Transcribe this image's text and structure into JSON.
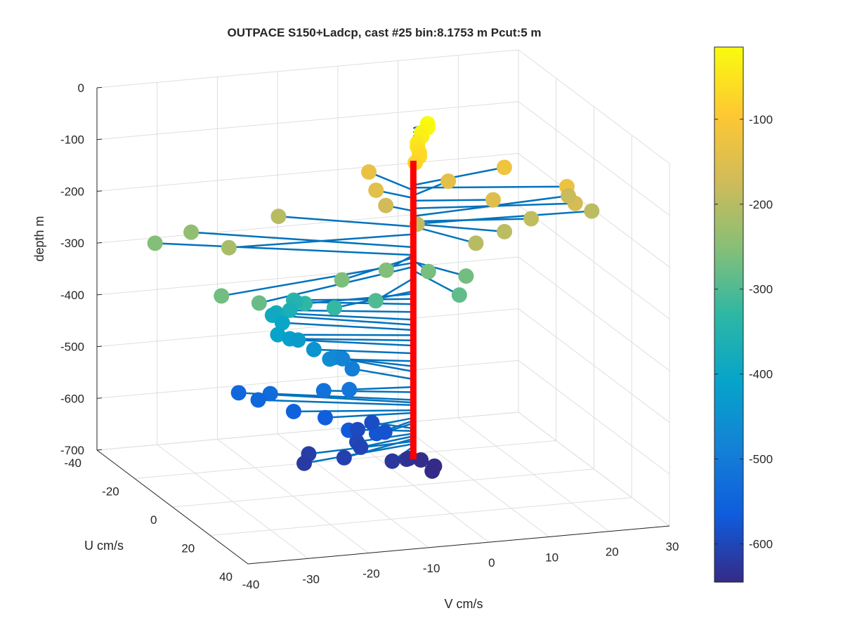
{
  "chart_data": {
    "type": "scatter3d",
    "title": "OUTPACE S150+Ladcp, cast #25 bin:8.1753 m  Pcut:5 m",
    "zlabel": "depth m",
    "ulabel": "U cm/s",
    "vlabel": "V cm/s",
    "zlim": [
      -700,
      0
    ],
    "ulim": [
      -40,
      40
    ],
    "vlim": [
      -40,
      30
    ],
    "z_ticks": [
      "0",
      "-100",
      "-200",
      "-300",
      "-400",
      "-500",
      "-600",
      "-700"
    ],
    "u_ticks": [
      "-40",
      "-20",
      "0",
      "20",
      "40"
    ],
    "v_ticks": [
      "-40",
      "-30",
      "-20",
      "-10",
      "0",
      "10",
      "20",
      "30"
    ],
    "colorbar": {
      "min": -645,
      "max": -15,
      "ticks": [
        "-100",
        "-200",
        "-300",
        "-400",
        "-500",
        "-600"
      ],
      "colormap": "parula"
    },
    "grid": true,
    "reference_line": {
      "color": "#ff0000",
      "z_from": -5,
      "z_to": -650,
      "u": 0,
      "v": 0
    },
    "stick_color": "#0072bd",
    "points": [
      {
        "z": -10,
        "u": -2,
        "v": 3
      },
      {
        "z": -18,
        "u": -2,
        "v": 3
      },
      {
        "z": -26,
        "u": -2,
        "v": 2
      },
      {
        "z": -34,
        "u": -2,
        "v": 2
      },
      {
        "z": -42,
        "u": -1,
        "v": 1
      },
      {
        "z": -50,
        "u": -1,
        "v": 1
      },
      {
        "z": -58,
        "u": 0,
        "v": 1
      },
      {
        "z": -66,
        "u": 0,
        "v": 1
      },
      {
        "z": -74,
        "u": 1,
        "v": 0
      },
      {
        "z": -130,
        "u": -14,
        "v": -3
      },
      {
        "z": -140,
        "u": -7,
        "v": 8
      },
      {
        "z": -150,
        "u": 4,
        "v": 12
      },
      {
        "z": -120,
        "u": -6,
        "v": 17
      },
      {
        "z": -125,
        "u": 8,
        "v": 23
      },
      {
        "z": -165,
        "u": 6,
        "v": 25
      },
      {
        "z": -145,
        "u": -7,
        "v": -4
      },
      {
        "z": -170,
        "u": -5,
        "v": -3
      },
      {
        "z": -190,
        "u": 2,
        "v": 0
      },
      {
        "z": -200,
        "u": 14,
        "v": 6
      },
      {
        "z": -195,
        "u": 10,
        "v": 12
      },
      {
        "z": -190,
        "u": 5,
        "v": 18
      },
      {
        "z": -180,
        "u": -4,
        "v": 27
      },
      {
        "z": -195,
        "u": 2,
        "v": 29
      },
      {
        "z": -200,
        "u": -14,
        "v": -18
      },
      {
        "z": -215,
        "u": -2,
        "v": -30
      },
      {
        "z": -240,
        "u": -22,
        "v": -30
      },
      {
        "z": -255,
        "u": -22,
        "v": -36
      },
      {
        "z": -270,
        "u": 10,
        "v": -35
      },
      {
        "z": -278,
        "u": 14,
        "v": -30
      },
      {
        "z": -260,
        "u": 10,
        "v": -15
      },
      {
        "z": -255,
        "u": 8,
        "v": -7
      },
      {
        "z": -265,
        "u": 8,
        "v": 0
      },
      {
        "z": -268,
        "u": 12,
        "v": 5
      },
      {
        "z": -285,
        "u": 18,
        "v": 2
      },
      {
        "z": -300,
        "u": 12,
        "v": -10
      },
      {
        "z": -325,
        "u": 6,
        "v": -15
      },
      {
        "z": -330,
        "u": 0,
        "v": -18
      },
      {
        "z": -340,
        "u": -6,
        "v": -18
      },
      {
        "z": -350,
        "u": -8,
        "v": -17
      },
      {
        "z": -365,
        "u": -8,
        "v": -18
      },
      {
        "z": -380,
        "u": -12,
        "v": -19
      },
      {
        "z": -390,
        "u": -14,
        "v": -19
      },
      {
        "z": -400,
        "u": -12,
        "v": -18
      },
      {
        "z": -410,
        "u": -8,
        "v": -20
      },
      {
        "z": -420,
        "u": -8,
        "v": -18
      },
      {
        "z": -430,
        "u": -10,
        "v": -16
      },
      {
        "z": -445,
        "u": -8,
        "v": -14
      },
      {
        "z": -460,
        "u": -6,
        "v": -12
      },
      {
        "z": -470,
        "u": -10,
        "v": -10
      },
      {
        "z": -480,
        "u": -12,
        "v": -8
      },
      {
        "z": -495,
        "u": -10,
        "v": -7
      },
      {
        "z": -510,
        "u": -2,
        "v": -10
      },
      {
        "z": -520,
        "u": -6,
        "v": -13
      },
      {
        "z": -535,
        "u": -12,
        "v": -20
      },
      {
        "z": -540,
        "u": -16,
        "v": -24
      },
      {
        "z": -545,
        "u": -12,
        "v": -22
      },
      {
        "z": -555,
        "u": -6,
        "v": -18
      },
      {
        "z": -560,
        "u": -2,
        "v": -14
      },
      {
        "z": -570,
        "u": 4,
        "v": -12
      },
      {
        "z": -575,
        "u": 6,
        "v": -8
      },
      {
        "z": -580,
        "u": 4,
        "v": -6
      },
      {
        "z": -590,
        "u": -6,
        "v": -5
      },
      {
        "z": -595,
        "u": -4,
        "v": -8
      },
      {
        "z": -600,
        "u": 2,
        "v": -10
      },
      {
        "z": -605,
        "u": 4,
        "v": -10
      },
      {
        "z": -610,
        "u": 8,
        "v": -14
      },
      {
        "z": -615,
        "u": 2,
        "v": -18
      },
      {
        "z": -620,
        "u": 6,
        "v": -20
      },
      {
        "z": -625,
        "u": 8,
        "v": -6
      },
      {
        "z": -630,
        "u": 6,
        "v": -3
      },
      {
        "z": -635,
        "u": 4,
        "v": -2
      },
      {
        "z": -640,
        "u": 4,
        "v": 0
      },
      {
        "z": -642,
        "u": 8,
        "v": 1
      },
      {
        "z": -645,
        "u": 10,
        "v": 0
      }
    ]
  }
}
